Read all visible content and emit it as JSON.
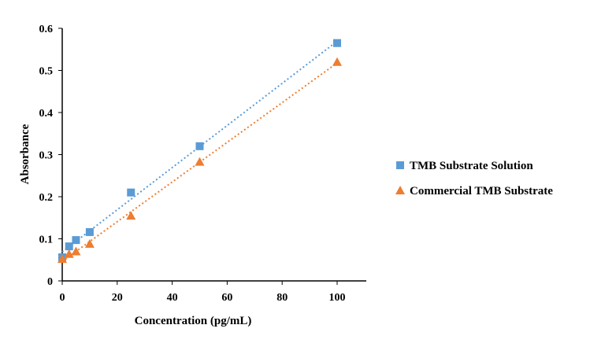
{
  "chart_data": {
    "type": "scatter",
    "title": "",
    "xlabel": "Concentration (pg/mL)",
    "ylabel": "Absorbance",
    "xlim": [
      0,
      110
    ],
    "ylim": [
      0,
      0.6
    ],
    "xticks": [
      "0",
      "20",
      "40",
      "60",
      "80",
      "100"
    ],
    "yticks": [
      "0",
      "0.1",
      "0.2",
      "0.3",
      "0.4",
      "0.5",
      "0.6"
    ],
    "grid": false,
    "legend_position": "right",
    "series": [
      {
        "name": "TMB Substrate Solution",
        "marker": "square",
        "color": "#5B9BD5",
        "trendline": "linear dotted",
        "x": [
          0,
          2.5,
          5,
          10,
          25,
          50,
          100
        ],
        "y": [
          0.056,
          0.082,
          0.097,
          0.116,
          0.21,
          0.32,
          0.565
        ]
      },
      {
        "name": "Commercial TMB Substrate",
        "marker": "triangle",
        "color": "#ED7D31",
        "trendline": "linear dotted",
        "x": [
          0,
          2.5,
          5,
          10,
          25,
          50,
          100
        ],
        "y": [
          0.052,
          0.064,
          0.07,
          0.088,
          0.155,
          0.283,
          0.52
        ]
      }
    ]
  }
}
